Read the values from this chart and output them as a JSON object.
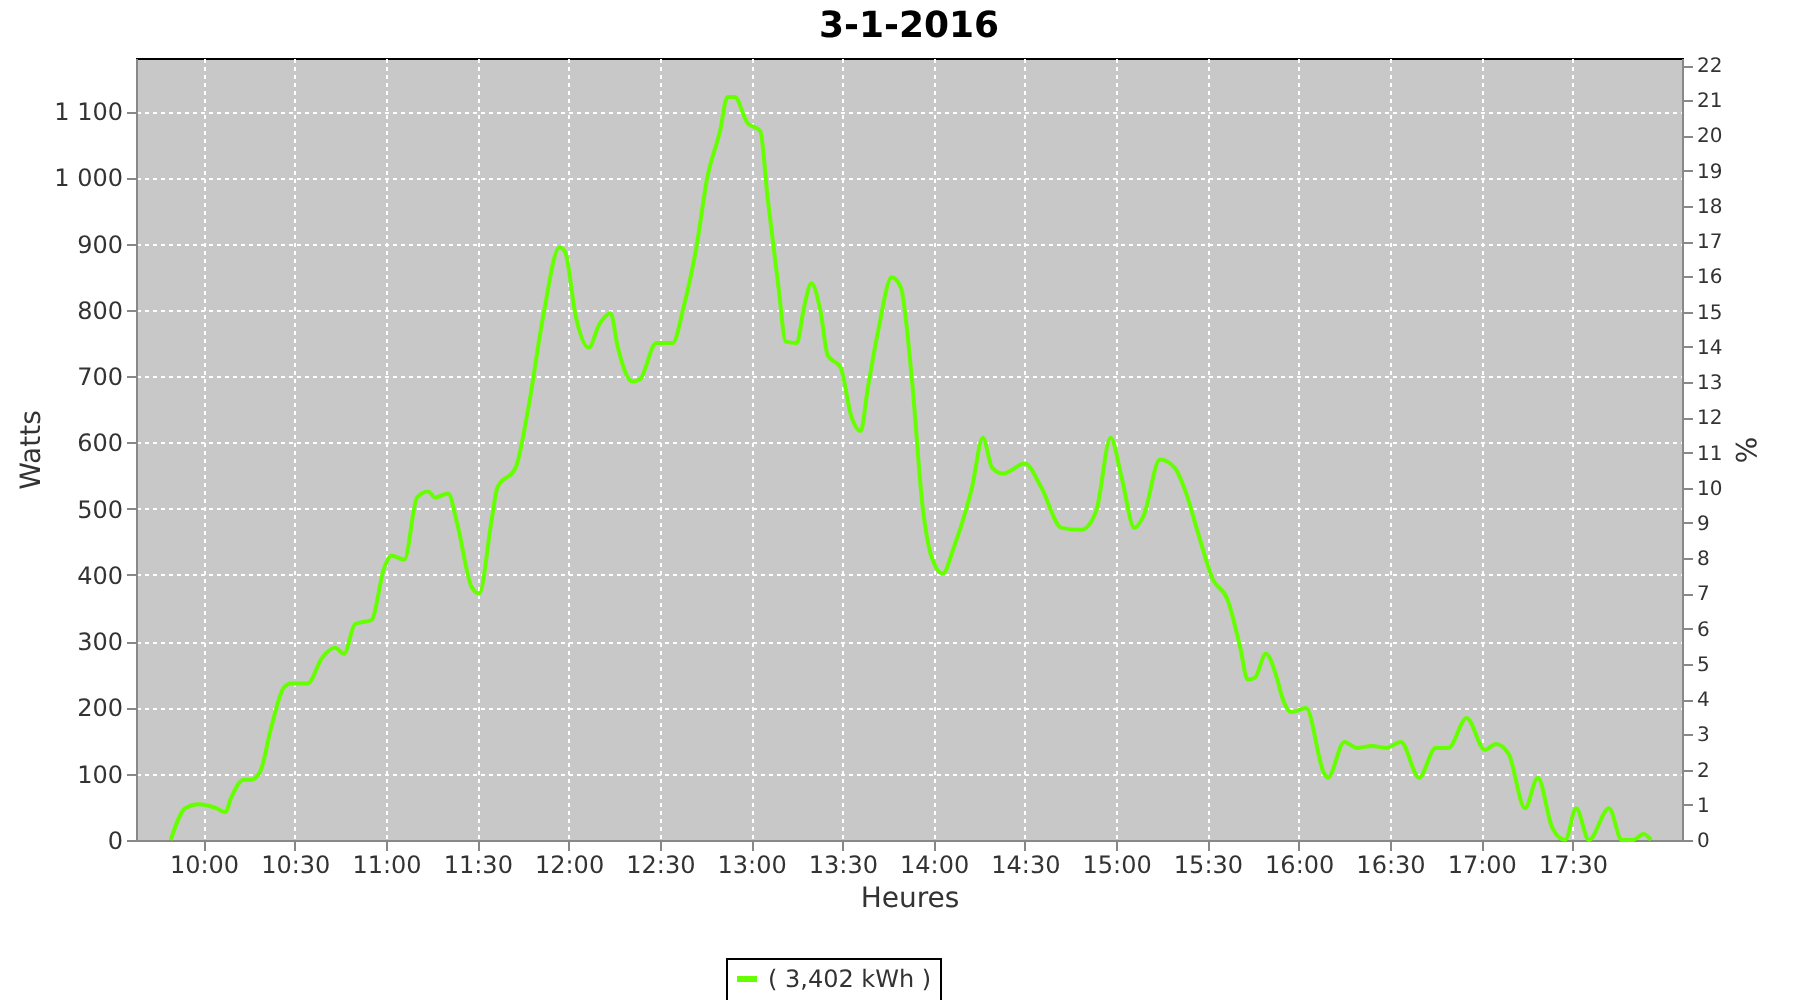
{
  "chart_data": {
    "type": "line",
    "title": "3-1-2016",
    "xlabel": "Heures",
    "ylabel": "Watts",
    "y2label": "%",
    "xlim": [
      9.63,
      18.1
    ],
    "xticks": [
      {
        "value": 10,
        "label": "10:00"
      },
      {
        "value": 10.5,
        "label": "10:30"
      },
      {
        "value": 11,
        "label": "11:00"
      },
      {
        "value": 11.5,
        "label": "11:30"
      },
      {
        "value": 12,
        "label": "12:00"
      },
      {
        "value": 12.5,
        "label": "12:30"
      },
      {
        "value": 13,
        "label": "13:00"
      },
      {
        "value": 13.5,
        "label": "13:30"
      },
      {
        "value": 14,
        "label": "14:00"
      },
      {
        "value": 14.5,
        "label": "14:30"
      },
      {
        "value": 15,
        "label": "15:00"
      },
      {
        "value": 15.5,
        "label": "15:30"
      },
      {
        "value": 16,
        "label": "16:00"
      },
      {
        "value": 16.5,
        "label": "16:30"
      },
      {
        "value": 17,
        "label": "17:00"
      },
      {
        "value": 17.5,
        "label": "17:30"
      }
    ],
    "ylim": [
      0,
      1180
    ],
    "yticks": [
      0,
      100,
      200,
      300,
      400,
      500,
      600,
      700,
      800,
      900,
      {
        "value": 1000,
        "label": "1 000"
      },
      {
        "value": 1100,
        "label": "1 100"
      }
    ],
    "y2lim": [
      0,
      22.2
    ],
    "y2ticks": [
      0,
      1,
      2,
      3,
      4,
      5,
      6,
      7,
      8,
      9,
      10,
      11,
      12,
      13,
      14,
      15,
      16,
      17,
      18,
      19,
      20,
      21,
      22
    ],
    "grid": true,
    "legend": "bottom",
    "series": [
      {
        "name": "( 3,402 kWh )",
        "color": "#66ff00",
        "x": [
          9.82,
          9.9,
          9.97,
          10.07,
          10.12,
          10.15,
          10.22,
          10.26,
          10.31,
          10.37,
          10.44,
          10.48,
          10.57,
          10.65,
          10.72,
          10.77,
          10.83,
          10.92,
          10.99,
          11.03,
          11.1,
          11.17,
          11.23,
          11.27,
          11.34,
          11.39,
          11.47,
          11.51,
          11.58,
          11.61,
          11.71,
          11.78,
          11.86,
          11.95,
          11.98,
          12.04,
          12.11,
          12.17,
          12.23,
          12.27,
          12.35,
          12.39,
          12.48,
          12.57,
          12.63,
          12.7,
          12.76,
          12.83,
          12.87,
          12.91,
          12.98,
          13.05,
          13.09,
          13.15,
          13.19,
          13.25,
          13.29,
          13.33,
          13.38,
          13.42,
          13.49,
          13.55,
          13.6,
          13.64,
          13.7,
          13.77,
          13.82,
          13.88,
          13.94,
          13.99,
          14.05,
          14.11,
          14.21,
          14.27,
          14.32,
          14.38,
          14.5,
          14.59,
          14.7,
          14.81,
          14.89,
          14.97,
          15.03,
          15.1,
          15.15,
          15.24,
          15.32,
          15.38,
          15.45,
          15.53,
          15.61,
          15.68,
          15.72,
          15.76,
          15.82,
          15.88,
          15.91,
          15.96,
          16.04,
          16.14,
          16.16,
          16.25,
          16.32,
          16.4,
          16.48,
          16.56,
          16.66,
          16.75,
          16.82,
          16.92,
          17.02,
          17.08,
          17.15,
          17.24,
          17.31,
          17.39,
          17.46,
          17.52,
          17.59,
          17.7,
          17.77,
          17.83,
          17.89,
          17.93
        ],
        "values": [
          0,
          48,
          54,
          48,
          42,
          63,
          91,
          91,
          103,
          169,
          230,
          236,
          236,
          275,
          290,
          281,
          326,
          332,
          411,
          429,
          423,
          517,
          526,
          517,
          523,
          477,
          381,
          372,
          486,
          532,
          562,
          653,
          789,
          894,
          888,
          789,
          743,
          779,
          795,
          743,
          692,
          695,
          750,
          750,
          804,
          894,
          1000,
          1070,
          1121,
          1121,
          1082,
          1070,
          970,
          834,
          752,
          750,
          804,
          840,
          798,
          731,
          713,
          638,
          617,
          683,
          774,
          849,
          834,
          698,
          502,
          426,
          402,
          441,
          532,
          607,
          562,
          553,
          568,
          532,
          471,
          468,
          496,
          607,
          547,
          471,
          489,
          574,
          562,
          526,
          462,
          393,
          363,
          290,
          242,
          245,
          281,
          245,
          215,
          193,
          199,
          100,
          94,
          148,
          139,
          142,
          139,
          148,
          94,
          139,
          139,
          184,
          136,
          145,
          130,
          48,
          94,
          18,
          0,
          48,
          0,
          48,
          0,
          0,
          9,
          0
        ]
      }
    ]
  }
}
